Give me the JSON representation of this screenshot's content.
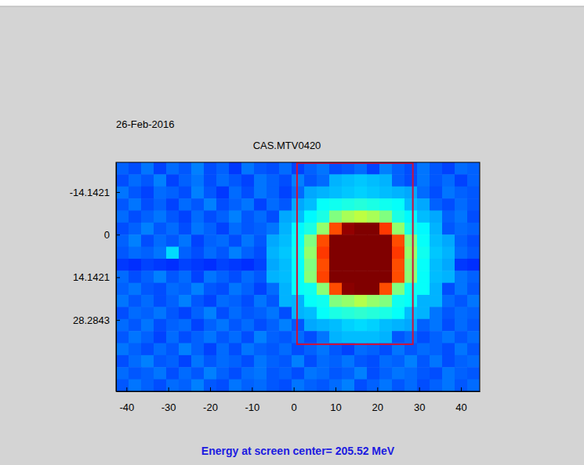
{
  "chart_data": {
    "type": "heatmap",
    "title": "CAS.MTV0420",
    "subtitle": "26-Feb-2016",
    "annotations": [
      "Energy at screen center= 205.52 MeV"
    ],
    "xlim": [
      -42.5,
      44.5
    ],
    "ylim": [
      -24,
      52
    ],
    "xticks": [
      -40,
      -30,
      -20,
      -10,
      0,
      10,
      20,
      30,
      40
    ],
    "yticks": [
      -14.1421,
      0,
      14.1421,
      28.2843
    ],
    "zlim": [
      0,
      100
    ],
    "roi": {
      "x": [
        0.8,
        28.5
      ],
      "y": [
        -24,
        36.4
      ],
      "color": "#d0103a"
    },
    "x": [
      -41,
      -38,
      -35,
      -32,
      -29,
      -26,
      -23,
      -20,
      -17,
      -14,
      -11,
      -8,
      -5,
      -2,
      1,
      4,
      7,
      10,
      13,
      16,
      19,
      22,
      25,
      28,
      31,
      34,
      37,
      40,
      43
    ],
    "y": [
      -22,
      -18,
      -14,
      -10,
      -6,
      -2,
      2,
      6,
      10,
      14,
      18,
      22,
      26,
      30,
      34,
      38,
      42,
      46,
      50
    ],
    "z": [
      [
        22,
        20,
        24,
        19,
        23,
        21,
        25,
        20,
        22,
        18,
        24,
        21,
        20,
        23,
        19,
        22,
        24,
        20,
        21,
        23,
        19,
        25,
        22,
        20,
        24,
        21,
        19,
        23,
        22
      ],
      [
        20,
        23,
        21,
        25,
        19,
        22,
        24,
        20,
        23,
        21,
        19,
        24,
        22,
        20,
        25,
        21,
        23,
        30,
        31,
        32,
        31,
        30,
        22,
        20,
        24,
        21,
        23,
        19,
        22
      ],
      [
        24,
        21,
        19,
        23,
        22,
        20,
        25,
        21,
        18,
        23,
        20,
        24,
        22,
        19,
        23,
        29,
        30,
        31,
        32,
        33,
        32,
        31,
        30,
        29,
        23,
        20,
        24,
        22,
        21
      ],
      [
        21,
        24,
        20,
        22,
        19,
        23,
        21,
        25,
        20,
        22,
        24,
        19,
        23,
        21,
        29,
        31,
        38,
        39,
        40,
        41,
        40,
        39,
        38,
        31,
        29,
        22,
        20,
        23,
        21
      ],
      [
        23,
        20,
        22,
        24,
        21,
        19,
        23,
        20,
        22,
        25,
        21,
        23,
        20,
        29,
        31,
        37,
        40,
        50,
        54,
        56,
        54,
        50,
        40,
        37,
        31,
        29,
        22,
        24,
        20
      ],
      [
        20,
        22,
        25,
        21,
        23,
        20,
        24,
        22,
        19,
        23,
        21,
        22,
        24,
        30,
        37,
        40,
        52,
        80,
        98,
        100,
        100,
        82,
        52,
        40,
        37,
        30,
        21,
        23,
        22
      ],
      [
        22,
        25,
        20,
        23,
        21,
        24,
        19,
        22,
        23,
        20,
        24,
        21,
        29,
        31,
        38,
        50,
        80,
        100,
        100,
        100,
        100,
        100,
        80,
        50,
        38,
        31,
        29,
        22,
        20
      ],
      [
        21,
        23,
        22,
        24,
        34,
        22,
        20,
        23,
        21,
        25,
        22,
        20,
        30,
        32,
        39,
        52,
        82,
        100,
        100,
        100,
        100,
        100,
        82,
        52,
        39,
        32,
        30,
        23,
        21
      ],
      [
        18,
        17,
        19,
        18,
        17,
        19,
        18,
        17,
        19,
        18,
        17,
        19,
        29,
        31,
        38,
        50,
        80,
        100,
        100,
        100,
        100,
        100,
        80,
        50,
        38,
        31,
        29,
        18,
        17
      ],
      [
        23,
        20,
        22,
        25,
        21,
        23,
        19,
        24,
        22,
        20,
        23,
        21,
        30,
        31,
        38,
        51,
        81,
        100,
        100,
        100,
        100,
        100,
        80,
        51,
        38,
        31,
        30,
        24,
        22
      ],
      [
        22,
        24,
        21,
        20,
        23,
        22,
        25,
        21,
        20,
        24,
        22,
        19,
        23,
        30,
        38,
        39,
        51,
        80,
        99,
        100,
        100,
        80,
        50,
        39,
        38,
        30,
        20,
        24,
        21
      ],
      [
        24,
        21,
        23,
        20,
        22,
        25,
        21,
        19,
        23,
        22,
        20,
        24,
        21,
        30,
        30,
        38,
        39,
        50,
        52,
        55,
        52,
        50,
        39,
        38,
        30,
        30,
        23,
        21,
        24
      ],
      [
        20,
        23,
        22,
        24,
        21,
        19,
        22,
        25,
        20,
        23,
        21,
        22,
        24,
        20,
        30,
        31,
        38,
        40,
        41,
        42,
        41,
        40,
        38,
        31,
        30,
        24,
        21,
        23,
        22
      ],
      [
        23,
        21,
        24,
        20,
        22,
        23,
        19,
        22,
        24,
        21,
        23,
        20,
        22,
        25,
        21,
        29,
        30,
        31,
        33,
        34,
        33,
        31,
        30,
        29,
        22,
        24,
        20,
        23,
        21
      ],
      [
        21,
        24,
        22,
        19,
        23,
        20,
        22,
        24,
        21,
        23,
        20,
        25,
        22,
        21,
        23,
        20,
        24,
        30,
        31,
        31,
        31,
        30,
        21,
        23,
        20,
        22,
        24,
        21,
        23
      ],
      [
        24,
        22,
        20,
        23,
        21,
        25,
        22,
        19,
        23,
        20,
        24,
        22,
        21,
        23,
        20,
        22,
        24,
        21,
        19,
        23,
        22,
        20,
        24,
        21,
        23,
        22,
        20,
        24,
        21
      ],
      [
        20,
        23,
        25,
        21,
        22,
        19,
        24,
        21,
        23,
        22,
        20,
        24,
        22,
        21,
        25,
        20,
        23,
        22,
        24,
        21,
        20,
        23,
        22,
        25,
        21,
        24,
        20,
        22,
        23
      ],
      [
        23,
        21,
        22,
        24,
        20,
        23,
        21,
        25,
        22,
        20,
        23,
        24,
        21,
        22,
        20,
        24,
        23,
        21,
        22,
        25,
        20,
        22,
        24,
        23,
        21,
        20,
        24,
        22,
        21
      ],
      [
        21,
        24,
        22,
        20,
        23,
        22,
        25,
        21,
        20,
        24,
        22,
        23,
        21,
        20,
        24,
        22,
        21,
        23,
        25,
        20,
        22,
        24,
        21,
        23,
        20,
        22,
        24,
        21,
        23
      ]
    ]
  }
}
